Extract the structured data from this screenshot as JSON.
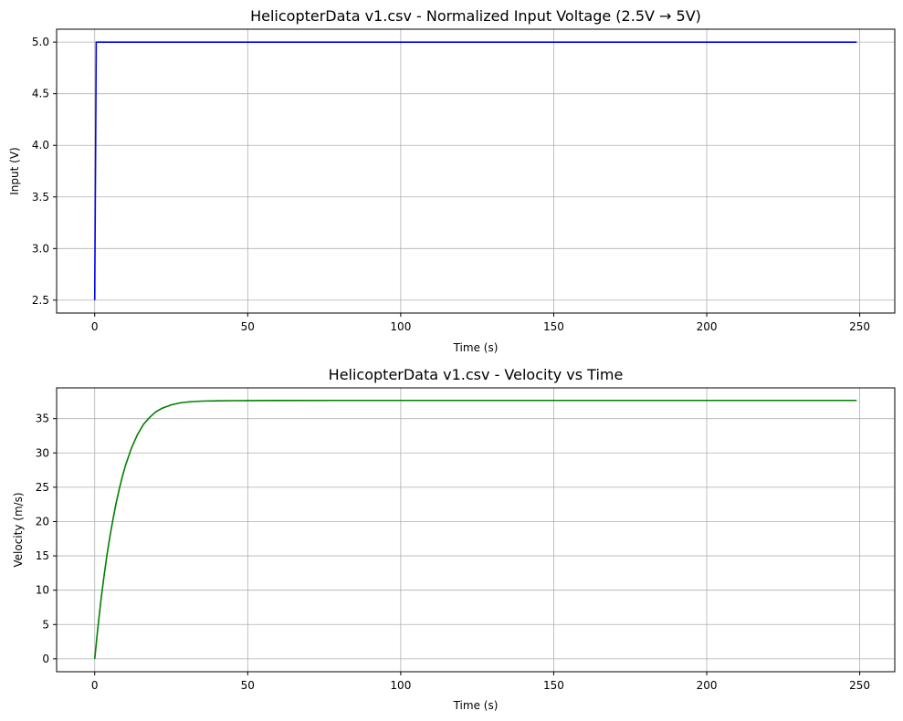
{
  "chart_data": [
    {
      "type": "line",
      "title": "HelicopterData v1.csv - Normalized Input Voltage (2.5V → 5V)",
      "xlabel": "Time (s)",
      "ylabel": "Input (V)",
      "xlim": [
        -12.45,
        261.45
      ],
      "ylim": [
        2.375,
        5.125
      ],
      "xticks": [
        0,
        50,
        100,
        150,
        200,
        250
      ],
      "yticks": [
        2.5,
        3.0,
        3.5,
        4.0,
        4.5,
        5.0
      ],
      "ytick_labels": [
        "2.5",
        "3.0",
        "3.5",
        "4.0",
        "4.5",
        "5.0"
      ],
      "grid": true,
      "color": "#0000ff",
      "series": [
        {
          "x": [
            0,
            0,
            0.5,
            249
          ],
          "y": [
            2.5,
            2.5,
            5.0,
            5.0
          ]
        }
      ]
    },
    {
      "type": "line",
      "title": "HelicopterData v1.csv - Velocity vs Time",
      "xlabel": "Time (s)",
      "ylabel": "Velocity (m/s)",
      "xlim": [
        -12.45,
        261.45
      ],
      "ylim": [
        -1.88,
        39.48
      ],
      "xticks": [
        0,
        50,
        100,
        150,
        200,
        250
      ],
      "yticks": [
        0,
        5,
        10,
        15,
        20,
        25,
        30,
        35
      ],
      "ytick_labels": [
        "0",
        "5",
        "10",
        "15",
        "20",
        "25",
        "30",
        "35"
      ],
      "grid": true,
      "color": "#008000",
      "series": [
        {
          "x": [
            0,
            1,
            2,
            3,
            4,
            5,
            6,
            7,
            8,
            9,
            10,
            12,
            14,
            16,
            18,
            20,
            22,
            25,
            28,
            31,
            35,
            40,
            45,
            50,
            60,
            80,
            100,
            150,
            200,
            249
          ],
          "y": [
            0,
            4.4,
            8.4,
            11.9,
            15.1,
            17.9,
            20.4,
            22.7,
            24.7,
            26.5,
            28.1,
            30.7,
            32.7,
            34.2,
            35.2,
            36.0,
            36.5,
            37.0,
            37.3,
            37.45,
            37.55,
            37.6,
            37.62,
            37.63,
            37.64,
            37.65,
            37.65,
            37.65,
            37.65,
            37.65
          ]
        }
      ]
    }
  ]
}
